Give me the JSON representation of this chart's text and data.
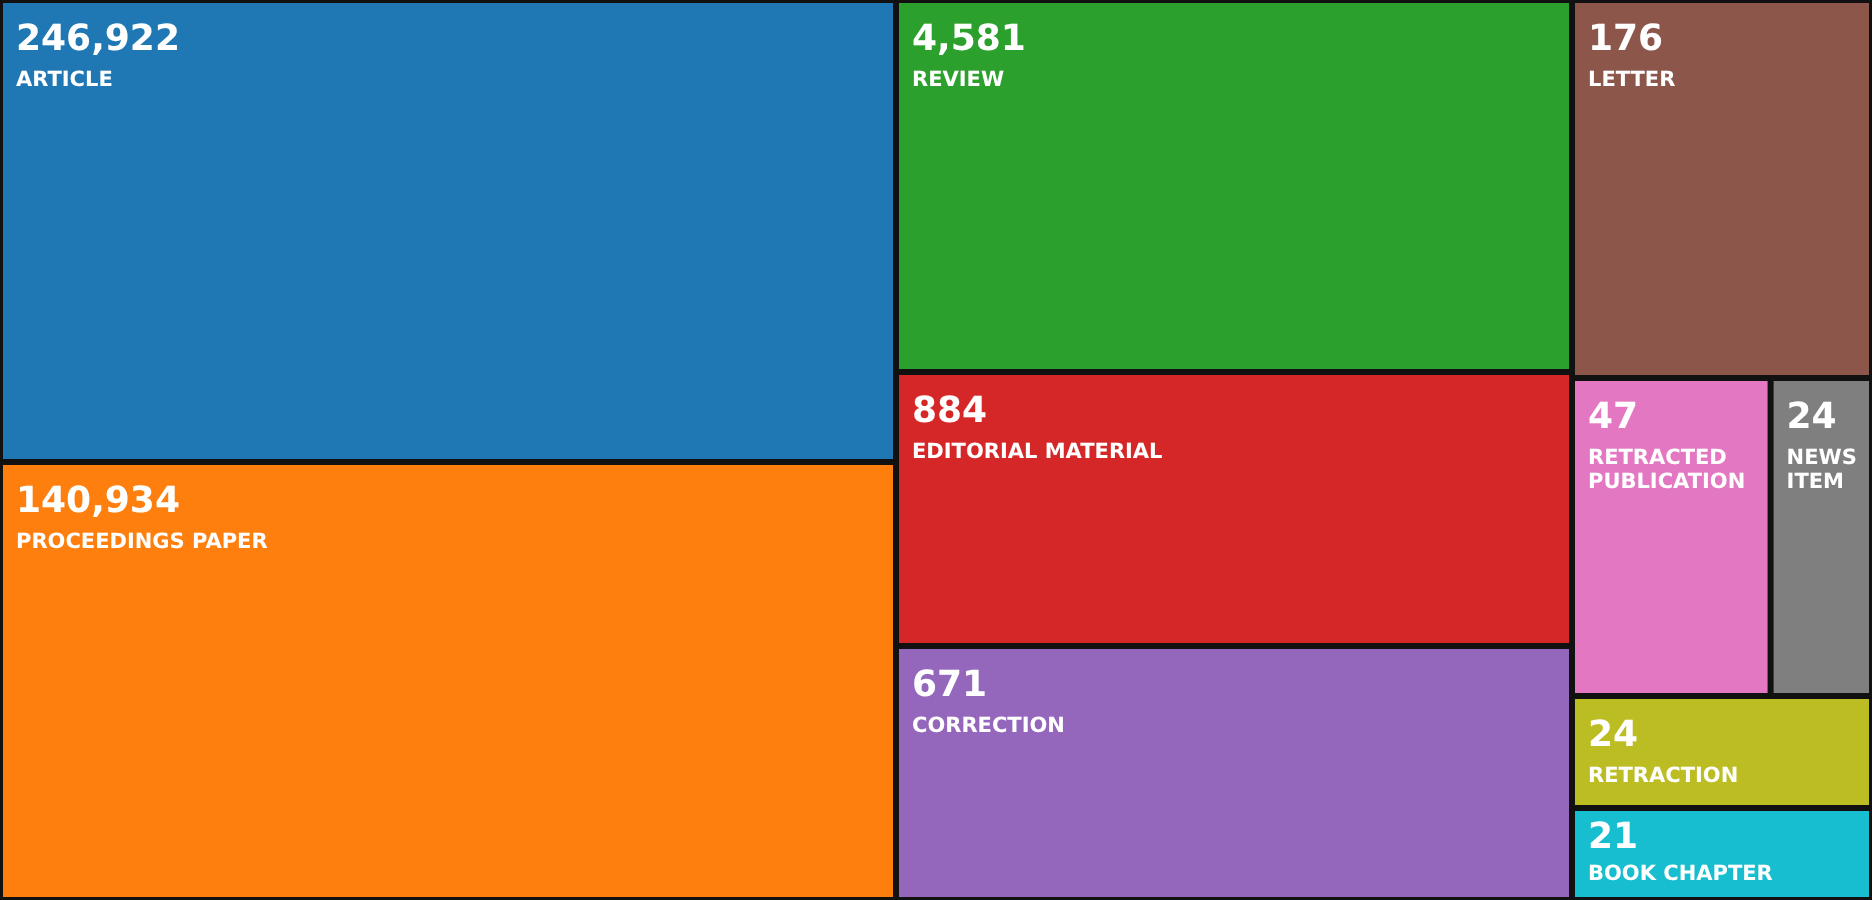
{
  "chart_data": {
    "type": "other",
    "categories": [
      "ARTICLE",
      "PROCEEDINGS PAPER",
      "REVIEW",
      "EDITORIAL MATERIAL",
      "CORRECTION",
      "LETTER",
      "RETRACTED PUBLICATION",
      "NEWS ITEM",
      "RETRACTION",
      "BOOK CHAPTER"
    ],
    "values": [
      246922,
      140934,
      4581,
      884,
      671,
      176,
      47,
      24,
      24,
      21
    ],
    "value_labels": [
      "246,922",
      "140,934",
      "4,581",
      "884",
      "671",
      "176",
      "47",
      "24",
      "24",
      "21"
    ],
    "colors": [
      "#1f77b4",
      "#ff7f0e",
      "#2ca02c",
      "#d62728",
      "#9467bd",
      "#8c564b",
      "#e377c2",
      "#7f7f7f",
      "#bcbd22",
      "#17becf"
    ]
  }
}
